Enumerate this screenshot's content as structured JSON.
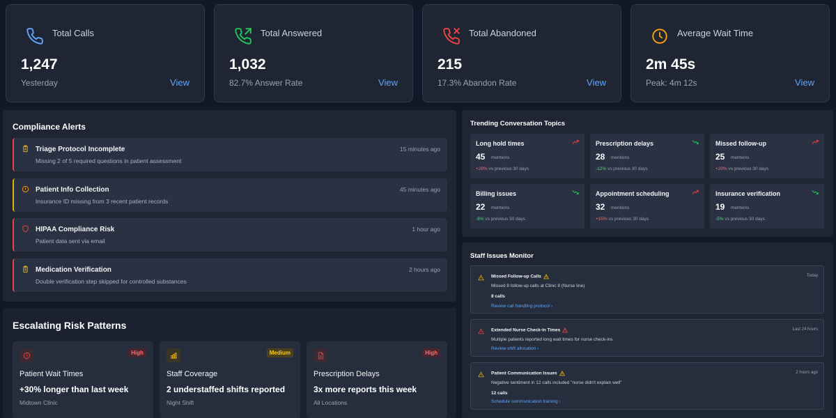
{
  "kpis": [
    {
      "title": "Total Calls",
      "value": "1,247",
      "sub": "Yesterday",
      "view": "View",
      "icon": "phone-icon",
      "color": "#60a5fa"
    },
    {
      "title": "Total Answered",
      "value": "1,032",
      "sub": "82.7% Answer Rate",
      "view": "View",
      "icon": "phone-answered-icon",
      "color": "#22c55e"
    },
    {
      "title": "Total Abandoned",
      "value": "215",
      "sub": "17.3% Abandon Rate",
      "view": "View",
      "icon": "phone-missed-icon",
      "color": "#ef4444"
    },
    {
      "title": "Average Wait Time",
      "value": "2m 45s",
      "sub": "Peak: 4m 12s",
      "view": "View",
      "icon": "clock-icon",
      "color": "#f59e0b"
    }
  ],
  "compliance": {
    "title": "Compliance Alerts",
    "alerts": [
      {
        "title": "Triage Protocol Incomplete",
        "desc": "Missing 2 of 5 required questions in patient assessment",
        "time": "15 minutes ago",
        "severity": "high",
        "icon": "clipboard-icon",
        "color": "#ef4444"
      },
      {
        "title": "Patient Info Collection",
        "desc": "Insurance ID missing from 3 recent patient records",
        "time": "45 minutes ago",
        "severity": "medium",
        "icon": "info-circle-icon",
        "color": "#eab308"
      },
      {
        "title": "HIPAA Compliance Risk",
        "desc": "Patient data sent via email",
        "time": "1 hour ago",
        "severity": "high",
        "icon": "shield-icon",
        "color": "#ef4444"
      },
      {
        "title": "Medication Verification",
        "desc": "Double verification step skipped for controlled substances",
        "time": "2 hours ago",
        "severity": "high",
        "icon": "clipboard-icon",
        "color": "#ef4444"
      }
    ]
  },
  "risk": {
    "title": "Escalating Risk Patterns",
    "cards": [
      {
        "badge": "High",
        "title": "Patient Wait Times",
        "main": "+30% longer than last week",
        "location": "Midtown Clinic",
        "icon": "clock-icon",
        "color": "#ef4444"
      },
      {
        "badge": "Medium",
        "title": "Staff Coverage",
        "main": "2 understaffed shifts reported",
        "location": "Night Shift",
        "icon": "bar-chart-icon",
        "color": "#eab308"
      },
      {
        "badge": "High",
        "title": "Prescription Delays",
        "main": "3x more reports this week",
        "location": "All Locations",
        "icon": "document-icon",
        "color": "#ef4444"
      }
    ]
  },
  "topics": {
    "title": "Trending Conversation Topics",
    "mentions_label": "mentions",
    "vs_label": "vs previous 30 days",
    "items": [
      {
        "name": "Long hold times",
        "count": "45",
        "change": "+28%",
        "trend": "up"
      },
      {
        "name": "Prescription delays",
        "count": "28",
        "change": "-12%",
        "trend": "down"
      },
      {
        "name": "Missed follow-up",
        "count": "25",
        "change": "+20%",
        "trend": "up"
      },
      {
        "name": "Billing issues",
        "count": "22",
        "change": "-8%",
        "trend": "down"
      },
      {
        "name": "Appointment scheduling",
        "count": "32",
        "change": "+15%",
        "trend": "up"
      },
      {
        "name": "Insurance verification",
        "count": "19",
        "change": "-5%",
        "trend": "down"
      }
    ]
  },
  "staff": {
    "title": "Staff Issues Monitor",
    "issues": [
      {
        "title": "Missed Follow-up Calls",
        "time": "Today",
        "desc": "Missed 8 follow-up calls at Clinic 8 (Nurse line)",
        "count": "8 calls",
        "link": "Review call handling protocol",
        "color": "#eab308"
      },
      {
        "title": "Extended Nurse Check-in Times",
        "time": "Last 24 hours",
        "desc": "Multiple patients reported long wait times for nurse check-ins",
        "count": "",
        "link": "Review shift allocation",
        "color": "#ef4444"
      },
      {
        "title": "Patient Communication Issues",
        "time": "2 hours ago",
        "desc": "Negative sentiment in 12 calls included \"nurse didn't explain well\"",
        "count": "12 calls",
        "link": "Schedule communication training",
        "color": "#eab308"
      }
    ]
  }
}
